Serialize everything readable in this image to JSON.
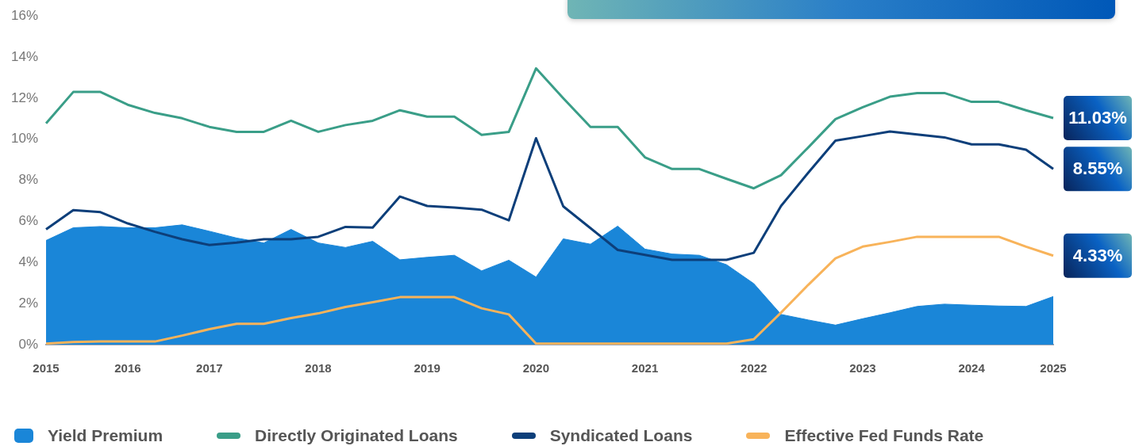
{
  "chart_data": {
    "type": "line",
    "categories": [
      "2015",
      null,
      null,
      "2016",
      null,
      null,
      "2017",
      null,
      null,
      null,
      "2018",
      null,
      null,
      null,
      "2019",
      null,
      null,
      null,
      "2020",
      null,
      null,
      null,
      "2021",
      null,
      null,
      null,
      "2022",
      null,
      null,
      null,
      "2023",
      null,
      null,
      null,
      "2024",
      null,
      null,
      "2025"
    ],
    "ylim": [
      0,
      16
    ],
    "yticks": [
      {
        "value": 0,
        "label": "0%"
      },
      {
        "value": 2,
        "label": "2%"
      },
      {
        "value": 4,
        "label": "4%"
      },
      {
        "value": 6,
        "label": "6%"
      },
      {
        "value": 8,
        "label": "8%"
      },
      {
        "value": 10,
        "label": "10%"
      },
      {
        "value": 12,
        "label": "12%"
      },
      {
        "value": 14,
        "label": "14%"
      },
      {
        "value": 16,
        "label": "16%"
      }
    ],
    "grid": false,
    "legend": "bottom",
    "marker": "none",
    "line_style": "solid",
    "series": [
      {
        "name": "Yield Premium",
        "type": "area",
        "color": "#1a86d8",
        "values": [
          5.07,
          5.69,
          5.75,
          5.69,
          5.69,
          5.83,
          5.52,
          5.19,
          4.95,
          5.61,
          4.95,
          4.73,
          5.03,
          4.13,
          4.25,
          4.35,
          3.59,
          4.11,
          3.29,
          5.15,
          4.89,
          5.77,
          4.65,
          4.41,
          4.35,
          3.89,
          2.97,
          1.47,
          1.2,
          0.95,
          1.26,
          1.55,
          1.86,
          1.97,
          1.92,
          1.88,
          1.86,
          2.34
        ]
      },
      {
        "name": "Directly Originated Loans",
        "type": "line",
        "color": "#3a9e88",
        "values": [
          10.77,
          12.3,
          12.3,
          11.68,
          11.28,
          11.02,
          10.6,
          10.36,
          10.36,
          10.9,
          10.36,
          10.69,
          10.9,
          11.41,
          11.1,
          11.1,
          10.21,
          10.36,
          13.45,
          12.0,
          10.6,
          10.6,
          9.12,
          8.55,
          8.55,
          8.07,
          7.61,
          8.25,
          9.6,
          10.98,
          11.56,
          12.07,
          12.25,
          12.25,
          11.82,
          11.82,
          11.41,
          11.03
        ],
        "value_labels": [
          null,
          null,
          null,
          null,
          null,
          null,
          null,
          null,
          null,
          null,
          null,
          null,
          null,
          null,
          null,
          null,
          null,
          null,
          null,
          null,
          null,
          null,
          null,
          null,
          null,
          null,
          null,
          null,
          null,
          null,
          null,
          null,
          null,
          null,
          null,
          null,
          null,
          "11.03%"
        ]
      },
      {
        "name": "Syndicated Loans",
        "type": "line",
        "color": "#0d3f7a",
        "values": [
          5.61,
          6.55,
          6.45,
          5.9,
          5.49,
          5.13,
          4.85,
          4.97,
          5.13,
          5.13,
          5.25,
          5.73,
          5.7,
          7.21,
          6.75,
          6.67,
          6.57,
          6.05,
          10.05,
          6.73,
          5.67,
          4.61,
          4.37,
          4.13,
          4.13,
          4.13,
          4.47,
          6.75,
          8.37,
          9.93,
          10.15,
          10.38,
          10.23,
          10.09,
          9.75,
          9.75,
          9.49,
          8.55
        ],
        "value_labels": [
          null,
          null,
          null,
          null,
          null,
          null,
          null,
          null,
          null,
          null,
          null,
          null,
          null,
          null,
          null,
          null,
          null,
          null,
          null,
          null,
          null,
          null,
          null,
          null,
          null,
          null,
          null,
          null,
          null,
          null,
          null,
          null,
          null,
          null,
          null,
          null,
          null,
          "8.55%"
        ]
      },
      {
        "name": "Effective Fed Funds Rate",
        "type": "line",
        "color": "#f8b35a",
        "values": [
          0.05,
          0.13,
          0.15,
          0.15,
          0.15,
          0.44,
          0.75,
          1.01,
          1.01,
          1.29,
          1.52,
          1.83,
          2.06,
          2.31,
          2.31,
          2.31,
          1.77,
          1.47,
          0.05,
          0.05,
          0.05,
          0.05,
          0.05,
          0.05,
          0.05,
          0.05,
          0.26,
          1.56,
          2.91,
          4.2,
          4.77,
          5.0,
          5.25,
          5.25,
          5.25,
          5.25,
          4.77,
          4.33
        ],
        "value_labels": [
          null,
          null,
          null,
          null,
          null,
          null,
          null,
          null,
          null,
          null,
          null,
          null,
          null,
          null,
          null,
          null,
          null,
          null,
          null,
          null,
          null,
          null,
          null,
          null,
          null,
          null,
          null,
          null,
          null,
          null,
          null,
          null,
          null,
          null,
          null,
          null,
          null,
          "4.33%"
        ]
      }
    ]
  }
}
